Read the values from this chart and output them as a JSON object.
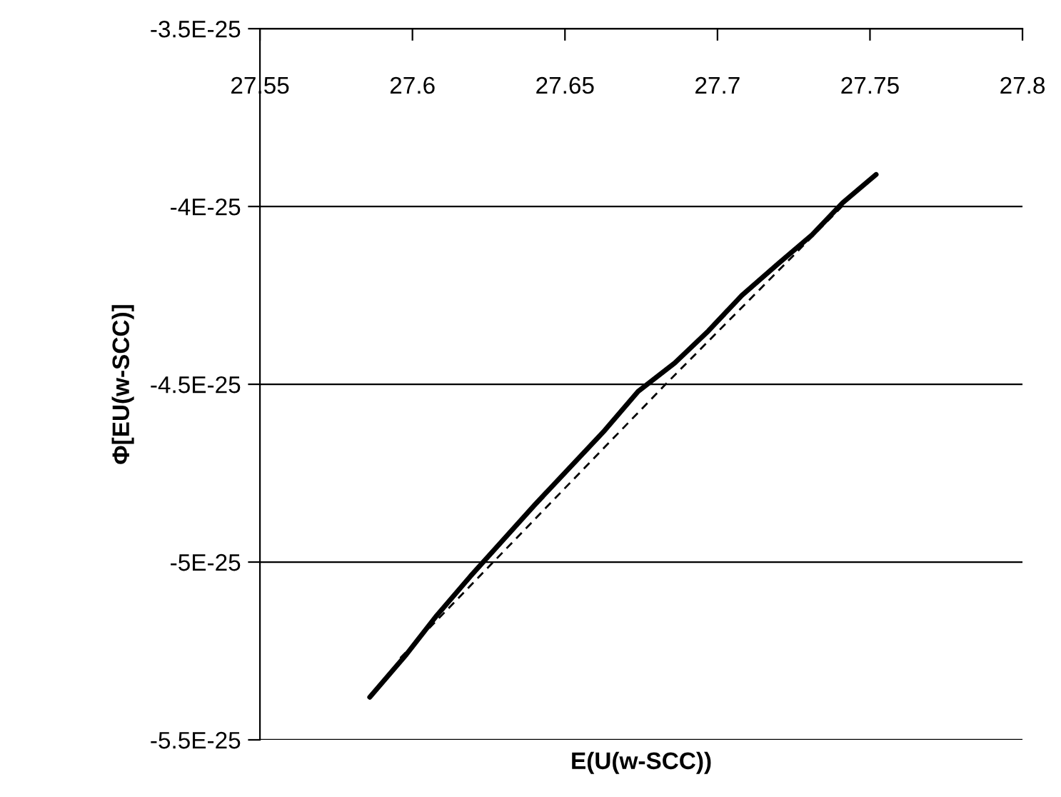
{
  "chart_data": {
    "type": "line",
    "xlabel": "E(U(w-SCC))",
    "ylabel": "Φ[EU(w-SCC)]",
    "series": [
      {
        "color": "#000000",
        "line_style": "solid",
        "x": [
          27.586,
          27.598,
          27.608,
          27.619,
          27.64,
          27.663,
          27.674,
          27.686,
          27.697,
          27.708,
          27.72,
          27.731,
          27.741,
          27.752
        ],
        "values": [
          -5.38e-25,
          -5.26e-25,
          -5.15e-25,
          -5.04e-25,
          -4.84e-25,
          -4.63e-25,
          -4.52e-25,
          -4.44e-25,
          -4.35e-25,
          -4.25e-25,
          -4.16e-25,
          -4.08e-25,
          -3.99e-25,
          -3.91e-25
        ]
      },
      {
        "color": "#000000",
        "line_style": "dashed",
        "x": [
          27.596,
          27.683,
          27.742
        ],
        "values": [
          -5.27e-25,
          -4.5e-25,
          -3.99e-25
        ]
      }
    ],
    "xlim": [
      27.55,
      27.8
    ],
    "xticks": [
      27.55,
      27.6,
      27.65,
      27.7,
      27.75,
      27.8
    ],
    "ylim": [
      -5.5e-25,
      -3.5e-25
    ],
    "yticks": [
      {
        "value": -5.5e-25,
        "label": "-5.5E-25"
      },
      {
        "value": -5e-25,
        "label": "-5E-25"
      },
      {
        "value": -4.5e-25,
        "label": "-4.5E-25"
      },
      {
        "value": -4e-25,
        "label": "-4E-25"
      },
      {
        "value": -3.5e-25,
        "label": "-3.5E-25"
      }
    ],
    "grid": "y",
    "marker": "none"
  }
}
